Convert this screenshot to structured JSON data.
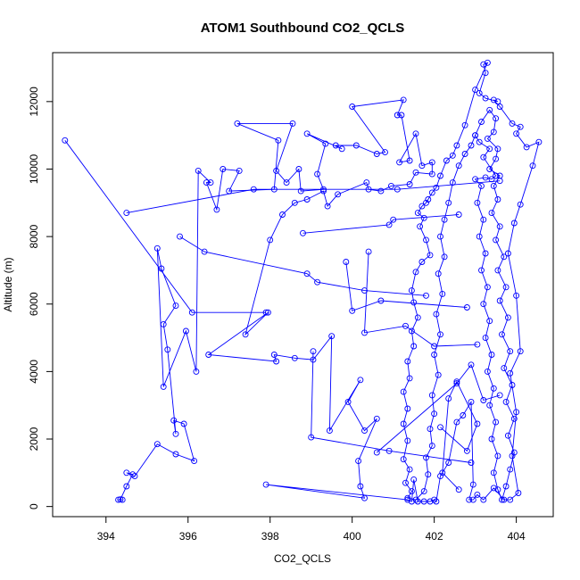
{
  "chart_data": {
    "type": "scatter",
    "title": "ATOM1 Southbound CO2_QCLS",
    "xlabel": "CO2_QCLS",
    "ylabel": "Altitude (m)",
    "xlim": [
      392.7,
      404.9
    ],
    "ylim": [
      -300,
      13450
    ],
    "xticks": [
      394,
      396,
      398,
      400,
      402,
      404
    ],
    "yticks": [
      0,
      2000,
      4000,
      6000,
      8000,
      10000,
      12000
    ],
    "grid": false,
    "legend": "none",
    "color": "#0000ff",
    "series": [
      {
        "points": [
          [
            394.4,
            200
          ],
          [
            394.3,
            200
          ],
          [
            394.35,
            210
          ],
          [
            394.5,
            600
          ],
          [
            394.65,
            950
          ],
          [
            394.5,
            1000
          ],
          [
            394.7,
            900
          ],
          [
            395.25,
            1850
          ],
          [
            395.7,
            1550
          ],
          [
            396.15,
            1350
          ],
          [
            395.9,
            2450
          ],
          [
            395.65,
            2550
          ],
          [
            395.7,
            2150
          ],
          [
            395.5,
            4650
          ],
          [
            395.4,
            5400
          ],
          [
            395.7,
            5950
          ],
          [
            395.35,
            7050
          ],
          [
            395.25,
            7650
          ],
          [
            395.4,
            3550
          ],
          [
            395.95,
            5200
          ],
          [
            396.2,
            4000
          ],
          [
            396.25,
            9950
          ],
          [
            396.55,
            9600
          ],
          [
            396.45,
            9600
          ],
          [
            396.7,
            8800
          ],
          [
            396.85,
            10000
          ],
          [
            397.25,
            9950
          ],
          [
            397.0,
            9350
          ],
          [
            398.1,
            9400
          ],
          [
            398.2,
            10850
          ],
          [
            397.2,
            11350
          ],
          [
            398.55,
            11350
          ],
          [
            398.15,
            9950
          ],
          [
            398.4,
            9600
          ],
          [
            398.7,
            10000
          ],
          [
            398.75,
            9350
          ],
          [
            399.3,
            9400
          ],
          [
            399.15,
            9850
          ],
          [
            399.35,
            10750
          ],
          [
            398.9,
            11050
          ],
          [
            399.75,
            10600
          ],
          [
            399.6,
            10700
          ],
          [
            400.1,
            10700
          ],
          [
            400.6,
            10450
          ],
          [
            400.8,
            10500
          ],
          [
            400.0,
            11850
          ],
          [
            401.25,
            12050
          ],
          [
            401.1,
            11600
          ],
          [
            401.2,
            11600
          ],
          [
            401.4,
            10250
          ],
          [
            401.15,
            10200
          ],
          [
            401.55,
            11050
          ],
          [
            401.7,
            10100
          ],
          [
            401.95,
            10200
          ],
          [
            401.95,
            9850
          ],
          [
            401.55,
            9900
          ],
          [
            401.4,
            9550
          ],
          [
            400.95,
            9500
          ],
          [
            400.7,
            9350
          ],
          [
            400.4,
            9400
          ],
          [
            400.35,
            9600
          ],
          [
            399.65,
            9250
          ],
          [
            399.4,
            8900
          ],
          [
            399.3,
            9350
          ],
          [
            398.9,
            9100
          ],
          [
            398.6,
            9000
          ],
          [
            398.3,
            8650
          ],
          [
            398.0,
            7900
          ],
          [
            397.4,
            5100
          ],
          [
            397.95,
            5750
          ],
          [
            396.5,
            4500
          ],
          [
            398.15,
            4300
          ],
          [
            398.1,
            4500
          ],
          [
            398.6,
            4400
          ],
          [
            399.05,
            4350
          ],
          [
            399.5,
            5050
          ],
          [
            399.45,
            2250
          ],
          [
            400.2,
            3750
          ],
          [
            399.9,
            3100
          ],
          [
            400.3,
            2250
          ],
          [
            400.6,
            2600
          ],
          [
            400.15,
            1350
          ],
          [
            400.2,
            600
          ],
          [
            400.3,
            250
          ],
          [
            397.9,
            650
          ],
          [
            401.35,
            200
          ],
          [
            401.45,
            150
          ],
          [
            401.5,
            800
          ],
          [
            401.6,
            150
          ],
          [
            401.75,
            150
          ],
          [
            401.9,
            150
          ],
          [
            402.0,
            200
          ],
          [
            402.05,
            150
          ],
          [
            402.15,
            900
          ],
          [
            402.35,
            1300
          ],
          [
            402.55,
            2500
          ],
          [
            402.7,
            2700
          ],
          [
            402.9,
            3100
          ],
          [
            402.95,
            650
          ],
          [
            402.85,
            200
          ],
          [
            402.95,
            200
          ],
          [
            403.05,
            350
          ],
          [
            403.2,
            200
          ],
          [
            403.45,
            550
          ],
          [
            403.7,
            200
          ],
          [
            403.85,
            200
          ],
          [
            404.05,
            400
          ],
          [
            403.9,
            1500
          ],
          [
            404.0,
            2800
          ],
          [
            403.85,
            3950
          ],
          [
            404.1,
            4600
          ],
          [
            404.0,
            6250
          ],
          [
            403.8,
            7500
          ],
          [
            403.95,
            8400
          ],
          [
            404.1,
            8950
          ],
          [
            404.4,
            10100
          ],
          [
            404.55,
            10800
          ],
          [
            404.25,
            10650
          ],
          [
            404.0,
            11050
          ],
          [
            404.1,
            11250
          ],
          [
            403.9,
            11350
          ],
          [
            403.6,
            11850
          ],
          [
            403.45,
            12050
          ],
          [
            403.55,
            12000
          ],
          [
            403.25,
            12100
          ],
          [
            403.1,
            12250
          ],
          [
            403.25,
            12850
          ],
          [
            403.2,
            13100
          ],
          [
            403.3,
            13150
          ],
          [
            403.0,
            12350
          ],
          [
            402.75,
            11300
          ],
          [
            402.55,
            10700
          ],
          [
            402.45,
            10400
          ],
          [
            402.3,
            10250
          ],
          [
            402.15,
            9800
          ],
          [
            402.05,
            9450
          ],
          [
            401.95,
            9300
          ],
          [
            401.85,
            9100
          ],
          [
            401.8,
            9000
          ],
          [
            401.7,
            8900
          ],
          [
            401.6,
            8700
          ],
          [
            401.75,
            8550
          ],
          [
            401.65,
            8300
          ],
          [
            401.8,
            7900
          ],
          [
            401.9,
            7450
          ],
          [
            401.7,
            7250
          ],
          [
            401.55,
            6950
          ],
          [
            401.45,
            6400
          ],
          [
            401.5,
            6050
          ],
          [
            401.6,
            5600
          ],
          [
            401.45,
            5200
          ],
          [
            401.5,
            4750
          ],
          [
            401.35,
            4300
          ],
          [
            401.4,
            3800
          ],
          [
            401.25,
            3400
          ],
          [
            401.35,
            2900
          ],
          [
            401.25,
            2450
          ],
          [
            401.35,
            1950
          ],
          [
            401.25,
            1400
          ],
          [
            401.4,
            1100
          ],
          [
            401.3,
            700
          ],
          [
            401.45,
            450
          ],
          [
            401.35,
            250
          ],
          [
            401.55,
            200
          ],
          [
            401.75,
            450
          ],
          [
            401.85,
            950
          ],
          [
            401.8,
            1450
          ],
          [
            401.95,
            1800
          ],
          [
            401.9,
            2300
          ],
          [
            402.0,
            2750
          ],
          [
            401.95,
            3300
          ],
          [
            402.1,
            3900
          ],
          [
            402.0,
            4500
          ],
          [
            402.15,
            5100
          ],
          [
            402.05,
            5700
          ],
          [
            402.2,
            6300
          ],
          [
            402.1,
            6900
          ],
          [
            402.25,
            7400
          ],
          [
            402.15,
            8000
          ],
          [
            402.25,
            8500
          ],
          [
            402.35,
            9000
          ],
          [
            402.45,
            9600
          ],
          [
            402.6,
            10100
          ],
          [
            402.75,
            10450
          ],
          [
            402.9,
            10700
          ],
          [
            403.0,
            11000
          ],
          [
            403.15,
            11400
          ],
          [
            403.35,
            11750
          ],
          [
            403.5,
            11500
          ],
          [
            403.45,
            11100
          ],
          [
            403.3,
            10900
          ],
          [
            403.55,
            10600
          ],
          [
            403.5,
            10300
          ],
          [
            403.35,
            10000
          ],
          [
            403.6,
            9800
          ],
          [
            403.45,
            9500
          ],
          [
            403.55,
            9100
          ],
          [
            403.4,
            8700
          ],
          [
            403.6,
            8300
          ],
          [
            403.5,
            7900
          ],
          [
            403.7,
            7400
          ],
          [
            403.55,
            7000
          ],
          [
            403.75,
            6500
          ],
          [
            403.6,
            6100
          ],
          [
            403.8,
            5600
          ],
          [
            403.65,
            5100
          ],
          [
            403.85,
            4600
          ],
          [
            403.7,
            4100
          ],
          [
            403.9,
            3600
          ],
          [
            403.75,
            3100
          ],
          [
            403.95,
            2600
          ],
          [
            403.8,
            2100
          ],
          [
            403.95,
            1600
          ],
          [
            403.85,
            1100
          ],
          [
            403.75,
            600
          ],
          [
            403.65,
            200
          ],
          [
            403.55,
            500
          ],
          [
            403.45,
            1000
          ],
          [
            403.55,
            1500
          ],
          [
            403.4,
            2000
          ],
          [
            403.5,
            2500
          ],
          [
            403.35,
            3000
          ],
          [
            403.45,
            3500
          ],
          [
            403.3,
            4000
          ],
          [
            403.4,
            4500
          ],
          [
            403.25,
            5000
          ],
          [
            403.35,
            5500
          ],
          [
            403.2,
            6000
          ],
          [
            403.3,
            6500
          ],
          [
            403.15,
            7000
          ],
          [
            403.25,
            7500
          ],
          [
            403.1,
            8000
          ],
          [
            403.2,
            8500
          ],
          [
            403.05,
            9000
          ],
          [
            403.15,
            9500
          ],
          [
            403.0,
            9700
          ],
          [
            403.25,
            9750
          ],
          [
            403.4,
            9700
          ],
          [
            403.5,
            9800
          ],
          [
            403.2,
            10350
          ],
          [
            403.35,
            10600
          ],
          [
            403.1,
            10800
          ],
          [
            403.0,
            11000
          ]
        ]
      },
      {
        "points": [
          [
            393.0,
            10850
          ],
          [
            396.1,
            5750
          ],
          [
            397.9,
            5750
          ]
        ]
      },
      {
        "points": [
          [
            394.5,
            8700
          ],
          [
            397.6,
            9400
          ],
          [
            401.1,
            9400
          ],
          [
            403.6,
            9650
          ]
        ]
      },
      {
        "points": [
          [
            395.8,
            8000
          ],
          [
            396.4,
            7550
          ],
          [
            398.9,
            6900
          ],
          [
            399.15,
            6650
          ],
          [
            400.3,
            6400
          ],
          [
            401.8,
            6250
          ]
        ]
      },
      {
        "points": [
          [
            398.8,
            8100
          ],
          [
            400.9,
            8350
          ],
          [
            401.0,
            8500
          ],
          [
            402.6,
            8650
          ]
        ]
      },
      {
        "points": [
          [
            399.85,
            7250
          ],
          [
            400.0,
            5800
          ],
          [
            400.7,
            6100
          ],
          [
            402.8,
            5900
          ]
        ]
      },
      {
        "points": [
          [
            400.4,
            7550
          ],
          [
            400.3,
            5150
          ],
          [
            401.3,
            5350
          ],
          [
            402.0,
            4750
          ],
          [
            403.05,
            4800
          ]
        ]
      },
      {
        "points": [
          [
            399.05,
            4600
          ],
          [
            399.0,
            2050
          ],
          [
            400.9,
            1650
          ],
          [
            402.9,
            1300
          ]
        ]
      },
      {
        "points": [
          [
            402.15,
            2350
          ],
          [
            402.8,
            1650
          ],
          [
            403.05,
            2450
          ],
          [
            402.55,
            3700
          ],
          [
            402.35,
            3200
          ],
          [
            402.2,
            1000
          ],
          [
            402.6,
            500
          ]
        ]
      },
      {
        "points": [
          [
            400.6,
            1600
          ],
          [
            402.55,
            3650
          ],
          [
            402.9,
            4200
          ],
          [
            403.2,
            3150
          ],
          [
            403.6,
            3300
          ]
        ]
      }
    ]
  }
}
